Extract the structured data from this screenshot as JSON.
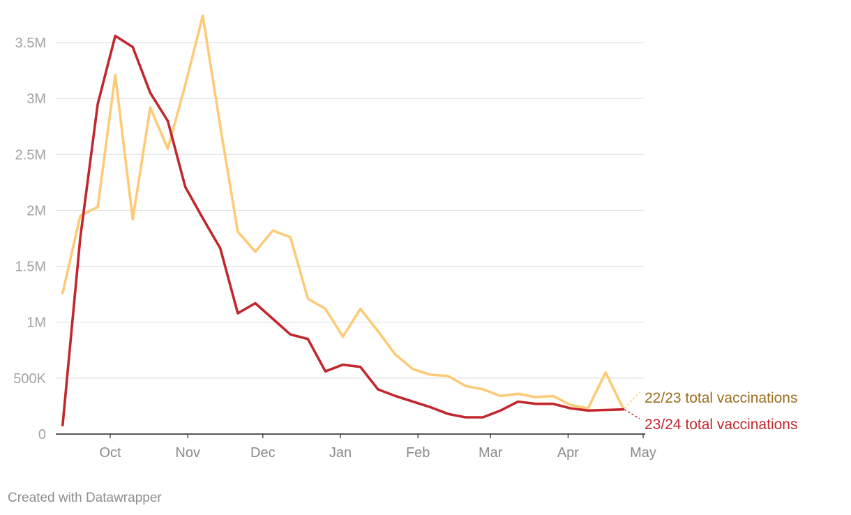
{
  "chart_data": {
    "type": "line",
    "x_axis": {
      "type": "date",
      "range": [
        "2023-09-12",
        "2024-05-01"
      ],
      "ticks": [
        {
          "date": "2023-10-01",
          "label": "Oct"
        },
        {
          "date": "2023-11-01",
          "label": "Nov"
        },
        {
          "date": "2023-12-01",
          "label": "Dec"
        },
        {
          "date": "2024-01-01",
          "label": "Jan"
        },
        {
          "date": "2024-02-01",
          "label": "Feb"
        },
        {
          "date": "2024-03-01",
          "label": "Mar"
        },
        {
          "date": "2024-04-01",
          "label": "Apr"
        },
        {
          "date": "2024-05-01",
          "label": "May"
        }
      ]
    },
    "y_axis": {
      "range": [
        0,
        3500000
      ],
      "ticks": [
        {
          "value": 0,
          "label": "0"
        },
        {
          "value": 500000,
          "label": "500K"
        },
        {
          "value": 1000000,
          "label": "1M"
        },
        {
          "value": 1500000,
          "label": "1.5M"
        },
        {
          "value": 2000000,
          "label": "2M"
        },
        {
          "value": 2500000,
          "label": "2.5M"
        },
        {
          "value": 3000000,
          "label": "3M"
        },
        {
          "value": 3500000,
          "label": "3.5M"
        }
      ]
    },
    "grid": {
      "y": true,
      "x": false
    },
    "series": [
      {
        "name": "22/23 total vaccinations",
        "color": "#fdcb77",
        "label_color": "#9a6e1e",
        "points": [
          {
            "x": "2023-09-12",
            "y": 1260000
          },
          {
            "x": "2023-09-19",
            "y": 1950000
          },
          {
            "x": "2023-09-26",
            "y": 2030000
          },
          {
            "x": "2023-10-03",
            "y": 3210000
          },
          {
            "x": "2023-10-10",
            "y": 1920000
          },
          {
            "x": "2023-10-17",
            "y": 2920000
          },
          {
            "x": "2023-10-24",
            "y": 2550000
          },
          {
            "x": "2023-10-31",
            "y": 3120000
          },
          {
            "x": "2023-11-07",
            "y": 3740000
          },
          {
            "x": "2023-11-14",
            "y": 2750000
          },
          {
            "x": "2023-11-21",
            "y": 1810000
          },
          {
            "x": "2023-11-28",
            "y": 1630000
          },
          {
            "x": "2023-12-05",
            "y": 1820000
          },
          {
            "x": "2023-12-12",
            "y": 1760000
          },
          {
            "x": "2023-12-19",
            "y": 1210000
          },
          {
            "x": "2023-12-26",
            "y": 1120000
          },
          {
            "x": "2024-01-02",
            "y": 870000
          },
          {
            "x": "2024-01-09",
            "y": 1120000
          },
          {
            "x": "2024-01-16",
            "y": 920000
          },
          {
            "x": "2024-01-23",
            "y": 710000
          },
          {
            "x": "2024-01-30",
            "y": 580000
          },
          {
            "x": "2024-02-06",
            "y": 530000
          },
          {
            "x": "2024-02-13",
            "y": 520000
          },
          {
            "x": "2024-02-20",
            "y": 430000
          },
          {
            "x": "2024-02-27",
            "y": 400000
          },
          {
            "x": "2024-03-05",
            "y": 340000
          },
          {
            "x": "2024-03-12",
            "y": 360000
          },
          {
            "x": "2024-03-19",
            "y": 330000
          },
          {
            "x": "2024-03-26",
            "y": 340000
          },
          {
            "x": "2024-04-02",
            "y": 260000
          },
          {
            "x": "2024-04-09",
            "y": 230000
          },
          {
            "x": "2024-04-16",
            "y": 550000
          },
          {
            "x": "2024-04-23",
            "y": 230000
          }
        ]
      },
      {
        "name": "23/24 total vaccinations",
        "color": "#c1272d",
        "label_color": "#c1272d",
        "points": [
          {
            "x": "2023-09-12",
            "y": 80000
          },
          {
            "x": "2023-09-19",
            "y": 1750000
          },
          {
            "x": "2023-09-26",
            "y": 2950000
          },
          {
            "x": "2023-10-03",
            "y": 3560000
          },
          {
            "x": "2023-10-10",
            "y": 3460000
          },
          {
            "x": "2023-10-17",
            "y": 3050000
          },
          {
            "x": "2023-10-24",
            "y": 2800000
          },
          {
            "x": "2023-10-31",
            "y": 2210000
          },
          {
            "x": "2023-11-07",
            "y": 1930000
          },
          {
            "x": "2023-11-14",
            "y": 1660000
          },
          {
            "x": "2023-11-21",
            "y": 1080000
          },
          {
            "x": "2023-11-28",
            "y": 1170000
          },
          {
            "x": "2023-12-05",
            "y": 1030000
          },
          {
            "x": "2023-12-12",
            "y": 890000
          },
          {
            "x": "2023-12-19",
            "y": 850000
          },
          {
            "x": "2023-12-26",
            "y": 560000
          },
          {
            "x": "2024-01-02",
            "y": 620000
          },
          {
            "x": "2024-01-09",
            "y": 600000
          },
          {
            "x": "2024-01-16",
            "y": 400000
          },
          {
            "x": "2024-01-23",
            "y": 340000
          },
          {
            "x": "2024-01-30",
            "y": 290000
          },
          {
            "x": "2024-02-06",
            "y": 240000
          },
          {
            "x": "2024-02-13",
            "y": 180000
          },
          {
            "x": "2024-02-20",
            "y": 150000
          },
          {
            "x": "2024-02-27",
            "y": 150000
          },
          {
            "x": "2024-03-05",
            "y": 210000
          },
          {
            "x": "2024-03-12",
            "y": 290000
          },
          {
            "x": "2024-03-19",
            "y": 270000
          },
          {
            "x": "2024-03-26",
            "y": 270000
          },
          {
            "x": "2024-04-02",
            "y": 230000
          },
          {
            "x": "2024-04-09",
            "y": 210000
          },
          {
            "x": "2024-04-16",
            "y": 215000
          },
          {
            "x": "2024-04-23",
            "y": 220000
          }
        ]
      }
    ]
  },
  "footer": {
    "credit": "Created with Datawrapper"
  }
}
